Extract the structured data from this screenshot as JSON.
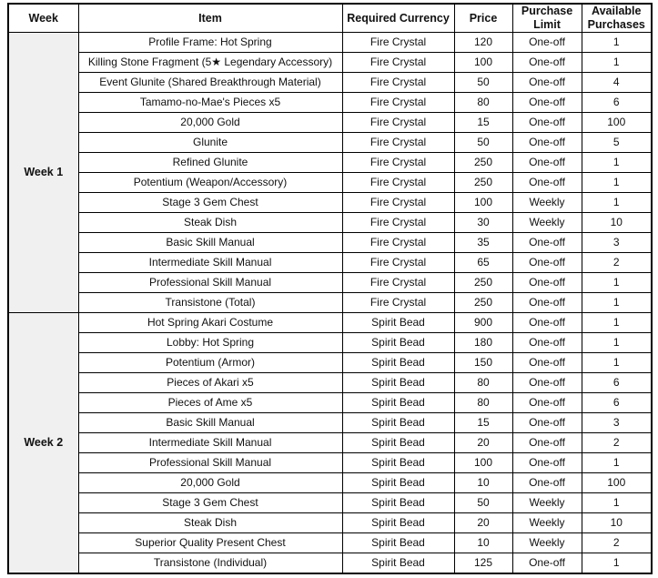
{
  "table": {
    "headers": [
      "Week",
      "Item",
      "Required Currency",
      "Price",
      "Purchase Limit",
      "Available Purchases"
    ],
    "sections": [
      {
        "week": "Week 1",
        "rows": [
          {
            "item": "Profile Frame: Hot Spring",
            "currency": "Fire Crystal",
            "price": "120",
            "limit": "One-off",
            "available": "1"
          },
          {
            "item": "Killing Stone Fragment (5★ Legendary Accessory)",
            "currency": "Fire Crystal",
            "price": "100",
            "limit": "One-off",
            "available": "1"
          },
          {
            "item": "Event Glunite (Shared Breakthrough Material)",
            "currency": "Fire Crystal",
            "price": "50",
            "limit": "One-off",
            "available": "4"
          },
          {
            "item": "Tamamo-no-Mae's Pieces x5",
            "currency": "Fire Crystal",
            "price": "80",
            "limit": "One-off",
            "available": "6"
          },
          {
            "item": "20,000 Gold",
            "currency": "Fire Crystal",
            "price": "15",
            "limit": "One-off",
            "available": "100"
          },
          {
            "item": "Glunite",
            "currency": "Fire Crystal",
            "price": "50",
            "limit": "One-off",
            "available": "5"
          },
          {
            "item": "Refined Glunite",
            "currency": "Fire Crystal",
            "price": "250",
            "limit": "One-off",
            "available": "1"
          },
          {
            "item": "Potentium (Weapon/Accessory)",
            "currency": "Fire Crystal",
            "price": "250",
            "limit": "One-off",
            "available": "1"
          },
          {
            "item": "Stage 3 Gem Chest",
            "currency": "Fire Crystal",
            "price": "100",
            "limit": "Weekly",
            "available": "1"
          },
          {
            "item": "Steak Dish",
            "currency": "Fire Crystal",
            "price": "30",
            "limit": "Weekly",
            "available": "10"
          },
          {
            "item": "Basic Skill Manual",
            "currency": "Fire Crystal",
            "price": "35",
            "limit": "One-off",
            "available": "3"
          },
          {
            "item": "Intermediate Skill Manual",
            "currency": "Fire Crystal",
            "price": "65",
            "limit": "One-off",
            "available": "2"
          },
          {
            "item": "Professional Skill Manual",
            "currency": "Fire Crystal",
            "price": "250",
            "limit": "One-off",
            "available": "1"
          },
          {
            "item": "Transistone (Total)",
            "currency": "Fire Crystal",
            "price": "250",
            "limit": "One-off",
            "available": "1"
          }
        ]
      },
      {
        "week": "Week 2",
        "rows": [
          {
            "item": "Hot Spring Akari Costume",
            "currency": "Spirit Bead",
            "price": "900",
            "limit": "One-off",
            "available": "1"
          },
          {
            "item": "Lobby: Hot Spring",
            "currency": "Spirit Bead",
            "price": "180",
            "limit": "One-off",
            "available": "1"
          },
          {
            "item": "Potentium (Armor)",
            "currency": "Spirit Bead",
            "price": "150",
            "limit": "One-off",
            "available": "1"
          },
          {
            "item": "Pieces of Akari x5",
            "currency": "Spirit Bead",
            "price": "80",
            "limit": "One-off",
            "available": "6"
          },
          {
            "item": "Pieces of Ame x5",
            "currency": "Spirit Bead",
            "price": "80",
            "limit": "One-off",
            "available": "6"
          },
          {
            "item": "Basic Skill Manual",
            "currency": "Spirit Bead",
            "price": "15",
            "limit": "One-off",
            "available": "3"
          },
          {
            "item": "Intermediate Skill Manual",
            "currency": "Spirit Bead",
            "price": "20",
            "limit": "One-off",
            "available": "2"
          },
          {
            "item": "Professional Skill Manual",
            "currency": "Spirit Bead",
            "price": "100",
            "limit": "One-off",
            "available": "1"
          },
          {
            "item": "20,000 Gold",
            "currency": "Spirit Bead",
            "price": "10",
            "limit": "One-off",
            "available": "100"
          },
          {
            "item": "Stage 3 Gem Chest",
            "currency": "Spirit Bead",
            "price": "50",
            "limit": "Weekly",
            "available": "1"
          },
          {
            "item": "Steak Dish",
            "currency": "Spirit Bead",
            "price": "20",
            "limit": "Weekly",
            "available": "10"
          },
          {
            "item": "Superior Quality Present Chest",
            "currency": "Spirit Bead",
            "price": "10",
            "limit": "Weekly",
            "available": "2"
          },
          {
            "item": "Transistone (Individual)",
            "currency": "Spirit Bead",
            "price": "125",
            "limit": "One-off",
            "available": "1"
          }
        ]
      }
    ]
  },
  "colors": {
    "border": "#000000",
    "text": "#111111",
    "week_cell_bg": "#f0f0f0",
    "row_bg": "#ffffff"
  }
}
